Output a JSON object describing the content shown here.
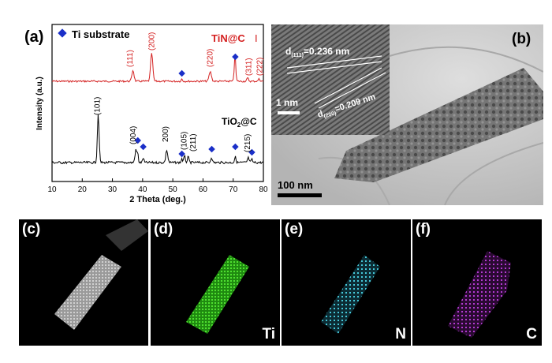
{
  "panel_a": {
    "label": "(a)",
    "legend_text": "Ti substrate",
    "top_series_label": "TiN@C",
    "top_series_mark": "I",
    "bottom_series_label_main": "TiO",
    "bottom_series_label_sub": "2",
    "bottom_series_label_tail": "@C",
    "xlabel": "2 Theta (deg.)",
    "ylabel": "Intensity (a.u.)",
    "xticks": [
      "10",
      "20",
      "30",
      "40",
      "50",
      "60",
      "70",
      "80"
    ],
    "tin_peaks": [
      "(111)",
      "(200)",
      "(220)",
      "(311)",
      "(222)"
    ],
    "tio2_peaks": [
      "(101)",
      "(004)",
      "200)",
      "(105)",
      "(211)",
      "(215)"
    ],
    "colors": {
      "tin": "#d42020",
      "tio2": "#000000",
      "ti_marker": "#1a2fc8"
    }
  },
  "chart_data": {
    "type": "line",
    "xlabel": "2 Theta (deg.)",
    "ylabel": "Intensity (a.u.)",
    "xlim": [
      10,
      80
    ],
    "grid": false,
    "legend": "top-left",
    "series": [
      {
        "name": "TiN@C",
        "peaks_x": [
          36.8,
          43.0,
          62.4,
          74.8,
          78.6
        ]
      },
      {
        "name": "TiO2@C",
        "peaks_x": [
          25.3,
          37.8,
          48.0,
          53.9,
          55.1,
          75.0
        ]
      },
      {
        "name": "Ti substrate",
        "marker_x": [
          38.4,
          40.2,
          53.0,
          62.9,
          70.7,
          76.2
        ]
      }
    ]
  },
  "panel_b": {
    "label": "(b)",
    "d111": "d(111)=0.236 nm",
    "d111_pre": "d",
    "d111_sub": "(111)",
    "d111_post": "=0.236 nm",
    "d200_pre": "d",
    "d200_sub": "(200)",
    "d200_post": "=0.209 nm",
    "inset_scale": "1 nm",
    "scale": "100 nm"
  },
  "maps": [
    {
      "label": "(c)",
      "element": ""
    },
    {
      "label": "(d)",
      "element": "Ti"
    },
    {
      "label": "(e)",
      "element": "N"
    },
    {
      "label": "(f)",
      "element": "C"
    }
  ],
  "map_colors": {
    "haadf": "#bdbdbd",
    "ti": "#35c21b",
    "n": "#45c7d8",
    "c": "#b23ad0"
  }
}
